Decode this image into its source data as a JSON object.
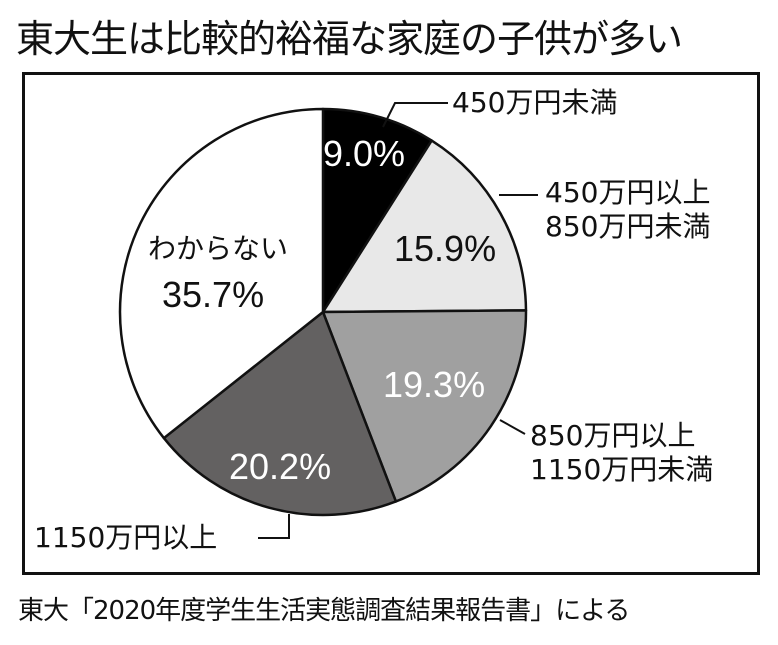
{
  "title": "東大生は比較的裕福な家庭の子供が多い",
  "source": "東大「2020年度学生生活実態調査結果報告書」による",
  "chart_data": {
    "type": "pie",
    "title": "東大生は比較的裕福な家庭の子供が多い",
    "start_angle": "12 o'clock",
    "direction": "clockwise",
    "categories": [
      "450万円未満",
      "450万円以上850万円未満",
      "850万円以上1150万円未満",
      "1150万円以上",
      "わからない"
    ],
    "values": [
      9.0,
      15.9,
      19.3,
      20.2,
      35.7
    ],
    "unit": "%",
    "colors": [
      "#000000",
      "#e8e8e8",
      "#a0a0a0",
      "#636161",
      "#ffffff"
    ],
    "annotation": "東大「2020年度学生生活実態調査結果報告書」による"
  },
  "slices": [
    {
      "label_line1": "450万円未満",
      "label_line2": "",
      "pct": "9.0%"
    },
    {
      "label_line1": "450万円以上",
      "label_line2": "850万円未満",
      "pct": "15.9%"
    },
    {
      "label_line1": "850万円以上",
      "label_line2": "1150万円未満",
      "pct": "19.3%"
    },
    {
      "label_line1": "1150万円以上",
      "label_line2": "",
      "pct": "20.2%"
    },
    {
      "label_line1": "わからない",
      "label_line2": "",
      "pct": "35.7%"
    }
  ]
}
